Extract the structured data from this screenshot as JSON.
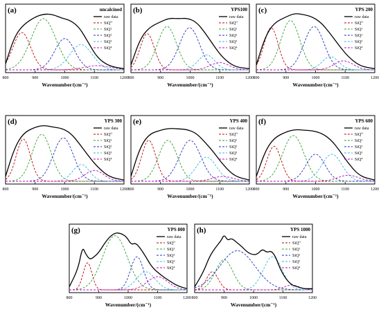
{
  "colors": {
    "raw": "#000000",
    "q0": "#c00000",
    "q1": "#2ca02c",
    "q2": "#1f2fbf",
    "q3": "#38b6d8",
    "q4": "#c000c0"
  },
  "legend_labels": [
    "raw data",
    "SiQ⁰",
    "SiQ¹",
    "SiQ²",
    "SiQ³",
    "SiQ⁴"
  ],
  "chart_data": [
    {
      "type": "line",
      "panel": "(a)",
      "title": "uncalcined",
      "xlabel": "Wavenumber/(cm⁻¹)",
      "xlim": [
        800,
        1200
      ],
      "xticks": [
        "800",
        "900",
        "1000",
        "1100",
        "1200"
      ],
      "legend": "top-right",
      "components": [
        {
          "name": "SiQ⁰",
          "center": 855,
          "height": 0.62,
          "width": 30
        },
        {
          "name": "SiQ¹",
          "center": 928,
          "height": 0.85,
          "width": 42
        },
        {
          "name": "SiQ²",
          "center": 1000,
          "height": 0.52,
          "width": 34
        },
        {
          "name": "SiQ³",
          "center": 1055,
          "height": 0.42,
          "width": 38
        },
        {
          "name": "SiQ⁴",
          "center": 1110,
          "height": 0.07,
          "width": 45
        }
      ],
      "raw": [
        [
          800,
          0.1
        ],
        [
          830,
          0.55
        ],
        [
          860,
          0.75
        ],
        [
          900,
          0.88
        ],
        [
          930,
          0.93
        ],
        [
          960,
          0.92
        ],
        [
          990,
          0.86
        ],
        [
          1020,
          0.82
        ],
        [
          1050,
          0.7
        ],
        [
          1080,
          0.45
        ],
        [
          1110,
          0.2
        ],
        [
          1150,
          0.06
        ],
        [
          1200,
          0.02
        ]
      ]
    },
    {
      "type": "line",
      "panel": "(b)",
      "title": "YPS100",
      "xlabel": "Wavenumber/(cm⁻¹)",
      "xlim": [
        800,
        1200
      ],
      "xticks": [
        "800",
        "900",
        "1000",
        "1100",
        "1200"
      ],
      "legend": "top-right",
      "components": [
        {
          "name": "SiQ⁰",
          "center": 855,
          "height": 0.6,
          "width": 24
        },
        {
          "name": "SiQ¹",
          "center": 922,
          "height": 0.72,
          "width": 32
        },
        {
          "name": "SiQ²",
          "center": 998,
          "height": 0.7,
          "width": 34
        },
        {
          "name": "SiQ³",
          "center": 1055,
          "height": 0.25,
          "width": 28
        },
        {
          "name": "SiQ⁴",
          "center": 1100,
          "height": 0.12,
          "width": 32
        }
      ],
      "raw": [
        [
          800,
          0.08
        ],
        [
          830,
          0.5
        ],
        [
          860,
          0.7
        ],
        [
          900,
          0.8
        ],
        [
          930,
          0.86
        ],
        [
          960,
          0.85
        ],
        [
          990,
          0.86
        ],
        [
          1020,
          0.8
        ],
        [
          1050,
          0.62
        ],
        [
          1080,
          0.4
        ],
        [
          1110,
          0.2
        ],
        [
          1150,
          0.05
        ],
        [
          1200,
          0.02
        ]
      ]
    },
    {
      "type": "line",
      "panel": "(c)",
      "title": "YPS 200",
      "xlabel": "Wavenumber/(cm⁻¹)",
      "xlim": [
        800,
        1200
      ],
      "xticks": [
        "800",
        "900",
        "1000",
        "1100",
        "1200"
      ],
      "legend": "top-right",
      "components": [
        {
          "name": "SiQ⁰",
          "center": 850,
          "height": 0.7,
          "width": 24
        },
        {
          "name": "SiQ¹",
          "center": 915,
          "height": 0.82,
          "width": 32
        },
        {
          "name": "SiQ²",
          "center": 995,
          "height": 0.72,
          "width": 34
        },
        {
          "name": "SiQ³",
          "center": 1050,
          "height": 0.22,
          "width": 28
        },
        {
          "name": "SiQ⁴",
          "center": 1095,
          "height": 0.15,
          "width": 32
        }
      ],
      "raw": [
        [
          800,
          0.08
        ],
        [
          830,
          0.55
        ],
        [
          860,
          0.78
        ],
        [
          900,
          0.88
        ],
        [
          930,
          0.94
        ],
        [
          960,
          0.92
        ],
        [
          990,
          0.88
        ],
        [
          1020,
          0.78
        ],
        [
          1050,
          0.6
        ],
        [
          1080,
          0.4
        ],
        [
          1110,
          0.22
        ],
        [
          1150,
          0.06
        ],
        [
          1200,
          0.02
        ]
      ]
    },
    {
      "type": "line",
      "panel": "(d)",
      "title": "YPS 300",
      "xlabel": "Wavenumber/(cm⁻¹)",
      "xlim": [
        800,
        1200
      ],
      "xticks": [
        "800",
        "900",
        "1000",
        "1100",
        "1200"
      ],
      "legend": "top-right",
      "components": [
        {
          "name": "SiQ⁰",
          "center": 860,
          "height": 0.7,
          "width": 24
        },
        {
          "name": "SiQ¹",
          "center": 922,
          "height": 0.78,
          "width": 32
        },
        {
          "name": "SiQ²",
          "center": 995,
          "height": 0.72,
          "width": 34
        },
        {
          "name": "SiQ³",
          "center": 1055,
          "height": 0.28,
          "width": 28
        },
        {
          "name": "SiQ⁴",
          "center": 1100,
          "height": 0.18,
          "width": 32
        }
      ],
      "raw": [
        [
          800,
          0.08
        ],
        [
          830,
          0.55
        ],
        [
          860,
          0.8
        ],
        [
          900,
          0.9
        ],
        [
          930,
          0.93
        ],
        [
          960,
          0.9
        ],
        [
          990,
          0.88
        ],
        [
          1020,
          0.8
        ],
        [
          1050,
          0.62
        ],
        [
          1080,
          0.42
        ],
        [
          1110,
          0.24
        ],
        [
          1150,
          0.07
        ],
        [
          1200,
          0.02
        ]
      ]
    },
    {
      "type": "line",
      "panel": "(e)",
      "title": "YPS 400",
      "xlabel": "Wavenumber/(cm⁻¹)",
      "xlim": [
        800,
        1200
      ],
      "xticks": [
        "800",
        "900",
        "1000",
        "1100",
        "1200"
      ],
      "legend": "top-right",
      "components": [
        {
          "name": "SiQ⁰",
          "center": 860,
          "height": 0.68,
          "width": 24
        },
        {
          "name": "SiQ¹",
          "center": 925,
          "height": 0.68,
          "width": 32
        },
        {
          "name": "SiQ²",
          "center": 1000,
          "height": 0.68,
          "width": 36
        },
        {
          "name": "SiQ³",
          "center": 1055,
          "height": 0.4,
          "width": 34
        },
        {
          "name": "SiQ⁴",
          "center": 1110,
          "height": 0.08,
          "width": 35
        }
      ],
      "raw": [
        [
          800,
          0.08
        ],
        [
          830,
          0.55
        ],
        [
          860,
          0.78
        ],
        [
          900,
          0.85
        ],
        [
          930,
          0.88
        ],
        [
          960,
          0.87
        ],
        [
          990,
          0.86
        ],
        [
          1020,
          0.8
        ],
        [
          1050,
          0.65
        ],
        [
          1080,
          0.48
        ],
        [
          1110,
          0.28
        ],
        [
          1150,
          0.08
        ],
        [
          1200,
          0.02
        ]
      ]
    },
    {
      "type": "line",
      "panel": "(f)",
      "title": "YPS 600",
      "xlabel": "Wavenumber/(cm⁻¹)",
      "xlim": [
        800,
        1200
      ],
      "xticks": [
        "800",
        "900",
        "1000",
        "1100",
        "1200"
      ],
      "legend": "top-right",
      "components": [
        {
          "name": "SiQ⁰",
          "center": 860,
          "height": 0.58,
          "width": 24
        },
        {
          "name": "SiQ¹",
          "center": 925,
          "height": 0.76,
          "width": 36
        },
        {
          "name": "SiQ²",
          "center": 1000,
          "height": 0.45,
          "width": 32
        },
        {
          "name": "SiQ³",
          "center": 1055,
          "height": 0.45,
          "width": 34
        },
        {
          "name": "SiQ⁴",
          "center": 1110,
          "height": 0.1,
          "width": 35
        }
      ],
      "raw": [
        [
          800,
          0.08
        ],
        [
          830,
          0.5
        ],
        [
          860,
          0.72
        ],
        [
          900,
          0.82
        ],
        [
          930,
          0.86
        ],
        [
          960,
          0.85
        ],
        [
          990,
          0.84
        ],
        [
          1020,
          0.8
        ],
        [
          1050,
          0.7
        ],
        [
          1080,
          0.52
        ],
        [
          1110,
          0.3
        ],
        [
          1150,
          0.08
        ],
        [
          1200,
          0.02
        ]
      ]
    },
    {
      "type": "line",
      "panel": "(g)",
      "title": "YPS 800",
      "xlabel": "Wavenumber/(cm⁻¹)",
      "xlim": [
        800,
        1200
      ],
      "xticks": [
        "800",
        "900",
        "1000",
        "1100",
        "1200"
      ],
      "legend": "top-right",
      "components": [
        {
          "name": "SiQ⁰",
          "center": 862,
          "height": 0.45,
          "width": 15
        },
        {
          "name": "SiQ¹",
          "center": 955,
          "height": 0.9,
          "width": 42
        },
        {
          "name": "SiQ²",
          "center": 1030,
          "height": 0.55,
          "width": 22
        },
        {
          "name": "SiQ³",
          "center": 1060,
          "height": 0.3,
          "width": 32
        },
        {
          "name": "SiQ⁴",
          "center": 1100,
          "height": 0.22,
          "width": 35
        }
      ],
      "raw": [
        [
          800,
          0.05
        ],
        [
          830,
          0.35
        ],
        [
          845,
          0.72
        ],
        [
          855,
          0.6
        ],
        [
          870,
          0.5
        ],
        [
          885,
          0.55
        ],
        [
          900,
          0.62
        ],
        [
          930,
          0.85
        ],
        [
          955,
          0.95
        ],
        [
          975,
          0.94
        ],
        [
          995,
          0.88
        ],
        [
          1010,
          0.75
        ],
        [
          1025,
          0.78
        ],
        [
          1040,
          0.7
        ],
        [
          1060,
          0.55
        ],
        [
          1080,
          0.38
        ],
        [
          1110,
          0.25
        ],
        [
          1140,
          0.15
        ],
        [
          1170,
          0.06
        ],
        [
          1200,
          0.02
        ]
      ]
    },
    {
      "type": "line",
      "panel": "(h)",
      "title": "YPS 1000",
      "xlabel": "Wavenumber/(cm⁻¹)",
      "xlim": [
        800,
        1200
      ],
      "xticks": [
        "800",
        "900",
        "1000",
        "1100",
        "1200"
      ],
      "legend": "top-right",
      "components": [
        {
          "name": "SiQ⁰",
          "center": 860,
          "height": 0.3,
          "width": 20
        },
        {
          "name": "SiQ¹",
          "center": 900,
          "height": 0.5,
          "width": 30
        },
        {
          "name": "SiQ²",
          "center": 945,
          "height": 0.65,
          "width": 60
        },
        {
          "name": "SiQ³",
          "center": 1065,
          "height": 0.55,
          "width": 32
        },
        {
          "name": "SiQ⁴",
          "center": 1130,
          "height": 0.08,
          "width": 25
        }
      ],
      "raw": [
        [
          800,
          0.05
        ],
        [
          830,
          0.3
        ],
        [
          850,
          0.55
        ],
        [
          870,
          0.7
        ],
        [
          890,
          0.82
        ],
        [
          900,
          0.92
        ],
        [
          912,
          0.82
        ],
        [
          925,
          0.86
        ],
        [
          940,
          0.8
        ],
        [
          960,
          0.72
        ],
        [
          980,
          0.62
        ],
        [
          1000,
          0.58
        ],
        [
          1015,
          0.6
        ],
        [
          1030,
          0.68
        ],
        [
          1045,
          0.62
        ],
        [
          1060,
          0.65
        ],
        [
          1075,
          0.55
        ],
        [
          1090,
          0.35
        ],
        [
          1110,
          0.18
        ],
        [
          1130,
          0.08
        ],
        [
          1150,
          0.05
        ],
        [
          1170,
          0.02
        ],
        [
          1200,
          0.02
        ]
      ]
    }
  ]
}
